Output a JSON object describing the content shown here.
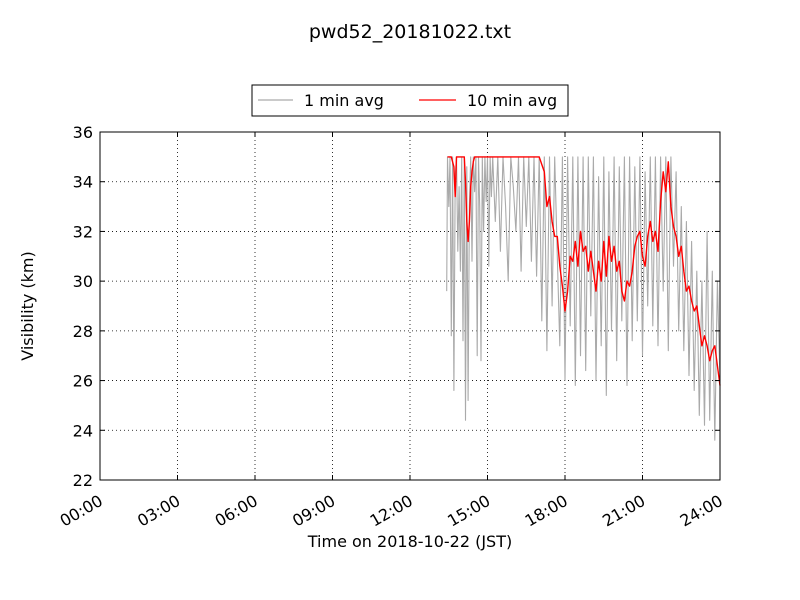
{
  "chart_data": {
    "type": "line",
    "title": "pwd52_20181022.txt",
    "xlabel": "Time on 2018-10-22 (JST)",
    "ylabel": "Visibility (km)",
    "xlim": [
      "00:00",
      "24:00"
    ],
    "ylim": [
      22,
      36
    ],
    "x_ticks": [
      "00:00",
      "03:00",
      "06:00",
      "09:00",
      "12:00",
      "15:00",
      "18:00",
      "21:00",
      "24:00"
    ],
    "y_ticks": [
      22,
      24,
      26,
      28,
      30,
      32,
      34,
      36
    ],
    "grid": true,
    "legend_position": "top-center",
    "x_unit": "hours",
    "series": [
      {
        "name": "1 min avg",
        "color": "#aaaaaa",
        "x": [
          13.42,
          13.45,
          13.5,
          13.55,
          13.6,
          13.65,
          13.7,
          13.75,
          13.8,
          13.85,
          13.9,
          13.95,
          14.0,
          14.05,
          14.1,
          14.15,
          14.2,
          14.25,
          14.3,
          14.35,
          14.4,
          14.45,
          14.5,
          14.55,
          14.6,
          14.65,
          14.7,
          14.75,
          14.8,
          14.85,
          14.9,
          14.95,
          15.0,
          15.05,
          15.1,
          15.15,
          15.2,
          15.3,
          15.4,
          15.5,
          15.6,
          15.7,
          15.8,
          15.9,
          16.0,
          16.1,
          16.2,
          16.3,
          16.4,
          16.5,
          16.6,
          16.7,
          16.8,
          16.9,
          17.0,
          17.1,
          17.2,
          17.3,
          17.4,
          17.5,
          17.6,
          17.7,
          17.8,
          17.9,
          18.0,
          18.1,
          18.2,
          18.3,
          18.4,
          18.5,
          18.6,
          18.7,
          18.8,
          18.9,
          19.0,
          19.1,
          19.2,
          19.3,
          19.4,
          19.5,
          19.6,
          19.7,
          19.8,
          19.9,
          20.0,
          20.1,
          20.2,
          20.3,
          20.4,
          20.5,
          20.6,
          20.7,
          20.8,
          20.9,
          21.0,
          21.1,
          21.2,
          21.3,
          21.4,
          21.5,
          21.6,
          21.7,
          21.8,
          21.9,
          22.0,
          22.1,
          22.2,
          22.3,
          22.4,
          22.5,
          22.6,
          22.7,
          22.8,
          22.9,
          23.0,
          23.1,
          23.2,
          23.3,
          23.4,
          23.5,
          23.6,
          23.7,
          23.8,
          23.9,
          24.0
        ],
        "y": [
          29.6,
          35.0,
          33.0,
          35.0,
          27.8,
          35.0,
          25.6,
          34.2,
          35.0,
          31.2,
          33.8,
          30.4,
          35.0,
          27.6,
          35.0,
          24.4,
          34.6,
          25.2,
          33.0,
          35.0,
          30.8,
          35.0,
          33.6,
          35.0,
          27.0,
          35.0,
          33.0,
          26.8,
          35.0,
          32.0,
          35.0,
          33.2,
          35.0,
          30.6,
          35.0,
          33.4,
          35.0,
          32.4,
          35.0,
          31.2,
          35.0,
          33.0,
          30.0,
          35.0,
          33.8,
          32.0,
          35.0,
          30.4,
          35.0,
          32.2,
          35.0,
          30.8,
          35.0,
          30.2,
          35.0,
          28.4,
          35.0,
          27.2,
          35.0,
          29.0,
          35.0,
          31.0,
          27.4,
          35.0,
          26.0,
          35.0,
          28.2,
          35.0,
          25.8,
          35.0,
          27.0,
          35.0,
          26.4,
          35.0,
          28.6,
          35.0,
          26.0,
          34.2,
          27.4,
          35.0,
          25.4,
          34.4,
          28.0,
          35.0,
          26.8,
          34.6,
          28.4,
          35.0,
          25.8,
          35.0,
          27.6,
          34.6,
          28.4,
          35.0,
          27.0,
          34.4,
          29.0,
          35.0,
          28.2,
          35.0,
          27.4,
          35.0,
          29.6,
          35.0,
          27.2,
          35.0,
          30.6,
          34.4,
          28.0,
          33.0,
          27.2,
          32.4,
          26.2,
          31.6,
          25.6,
          30.4,
          24.6,
          30.0,
          24.2,
          32.0,
          24.4,
          30.4,
          23.6,
          30.0,
          26.0
        ]
      },
      {
        "name": "10 min avg",
        "color": "#ff0000",
        "x": [
          13.45,
          13.6,
          13.7,
          13.75,
          13.8,
          13.9,
          14.0,
          14.1,
          14.15,
          14.2,
          14.25,
          14.3,
          14.35,
          14.4,
          14.45,
          14.5,
          14.6,
          14.7,
          14.8,
          14.9,
          15.0,
          15.2,
          15.5,
          16.0,
          16.5,
          17.0,
          17.2,
          17.3,
          17.4,
          17.5,
          17.6,
          17.7,
          17.8,
          17.9,
          18.0,
          18.1,
          18.2,
          18.3,
          18.4,
          18.5,
          18.6,
          18.7,
          18.8,
          18.9,
          19.0,
          19.1,
          19.2,
          19.3,
          19.4,
          19.5,
          19.6,
          19.7,
          19.8,
          19.9,
          20.0,
          20.1,
          20.2,
          20.3,
          20.4,
          20.5,
          20.6,
          20.7,
          20.8,
          20.9,
          21.0,
          21.1,
          21.2,
          21.3,
          21.4,
          21.5,
          21.6,
          21.7,
          21.8,
          21.9,
          22.0,
          22.1,
          22.2,
          22.3,
          22.4,
          22.5,
          22.6,
          22.7,
          22.8,
          22.9,
          23.0,
          23.1,
          23.2,
          23.3,
          23.4,
          23.5,
          23.6,
          23.7,
          23.8,
          23.9,
          24.0
        ],
        "y": [
          35.0,
          35.0,
          34.6,
          33.4,
          35.0,
          35.0,
          35.0,
          35.0,
          34.0,
          32.4,
          31.6,
          32.4,
          33.8,
          34.4,
          34.8,
          35.0,
          35.0,
          35.0,
          35.0,
          35.0,
          35.0,
          35.0,
          35.0,
          35.0,
          35.0,
          35.0,
          34.4,
          33.0,
          33.4,
          32.4,
          31.8,
          31.8,
          30.6,
          29.8,
          28.8,
          29.6,
          31.0,
          30.8,
          31.6,
          30.6,
          32.0,
          31.2,
          31.4,
          30.4,
          31.2,
          30.4,
          29.6,
          30.8,
          30.0,
          31.6,
          30.2,
          31.8,
          30.8,
          31.4,
          30.4,
          30.8,
          29.6,
          29.2,
          30.0,
          29.8,
          30.4,
          31.4,
          31.8,
          32.0,
          31.0,
          30.6,
          31.8,
          32.4,
          31.6,
          32.0,
          31.2,
          33.2,
          34.4,
          33.6,
          34.8,
          33.0,
          32.2,
          31.8,
          31.0,
          31.4,
          30.4,
          29.6,
          29.8,
          29.2,
          28.8,
          29.0,
          28.2,
          27.4,
          27.8,
          27.4,
          26.8,
          27.2,
          27.4,
          26.6,
          25.8
        ]
      }
    ]
  }
}
